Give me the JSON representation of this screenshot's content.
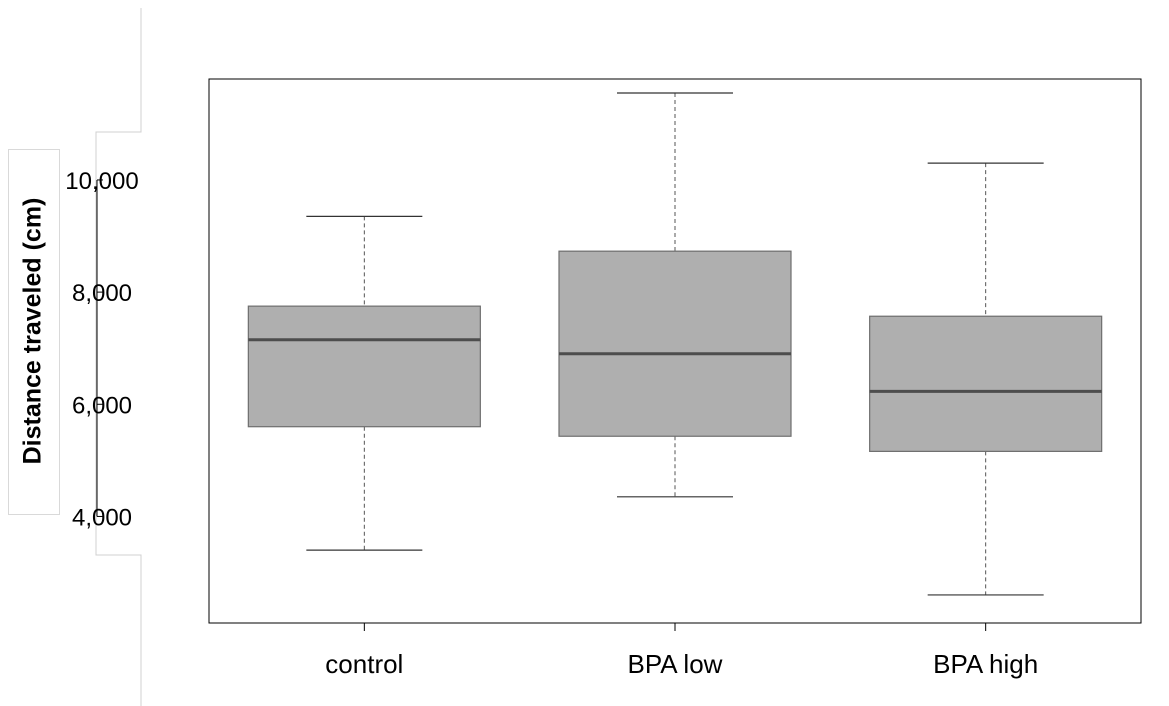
{
  "chart_data": {
    "type": "boxplot",
    "title": "",
    "xlabel": "",
    "ylabel": "Distance  traveled (cm)",
    "categories": [
      "control",
      "BPA low",
      "BPA high"
    ],
    "yticks": [
      4000,
      6000,
      8000,
      10000
    ],
    "ytick_labels": [
      "4,000",
      "6,000",
      "8,000",
      "10,000"
    ],
    "ylim": [
      2100,
      11800
    ],
    "boxes": [
      {
        "name": "control",
        "min": 3400,
        "q1": 5600,
        "median": 7150,
        "q3": 7750,
        "max": 9350
      },
      {
        "name": "BPA low",
        "min": 4350,
        "q1": 5430,
        "median": 6900,
        "q3": 8730,
        "max": 11550
      },
      {
        "name": "BPA high",
        "min": 2600,
        "q1": 5160,
        "median": 6230,
        "q3": 7570,
        "max": 10300
      }
    ],
    "colors": {
      "box_fill": "#afafaf",
      "box_border": "#6e6e6e",
      "median": "#4d4d4d",
      "whisker": "#555555"
    },
    "grid": false,
    "legend": "none"
  }
}
